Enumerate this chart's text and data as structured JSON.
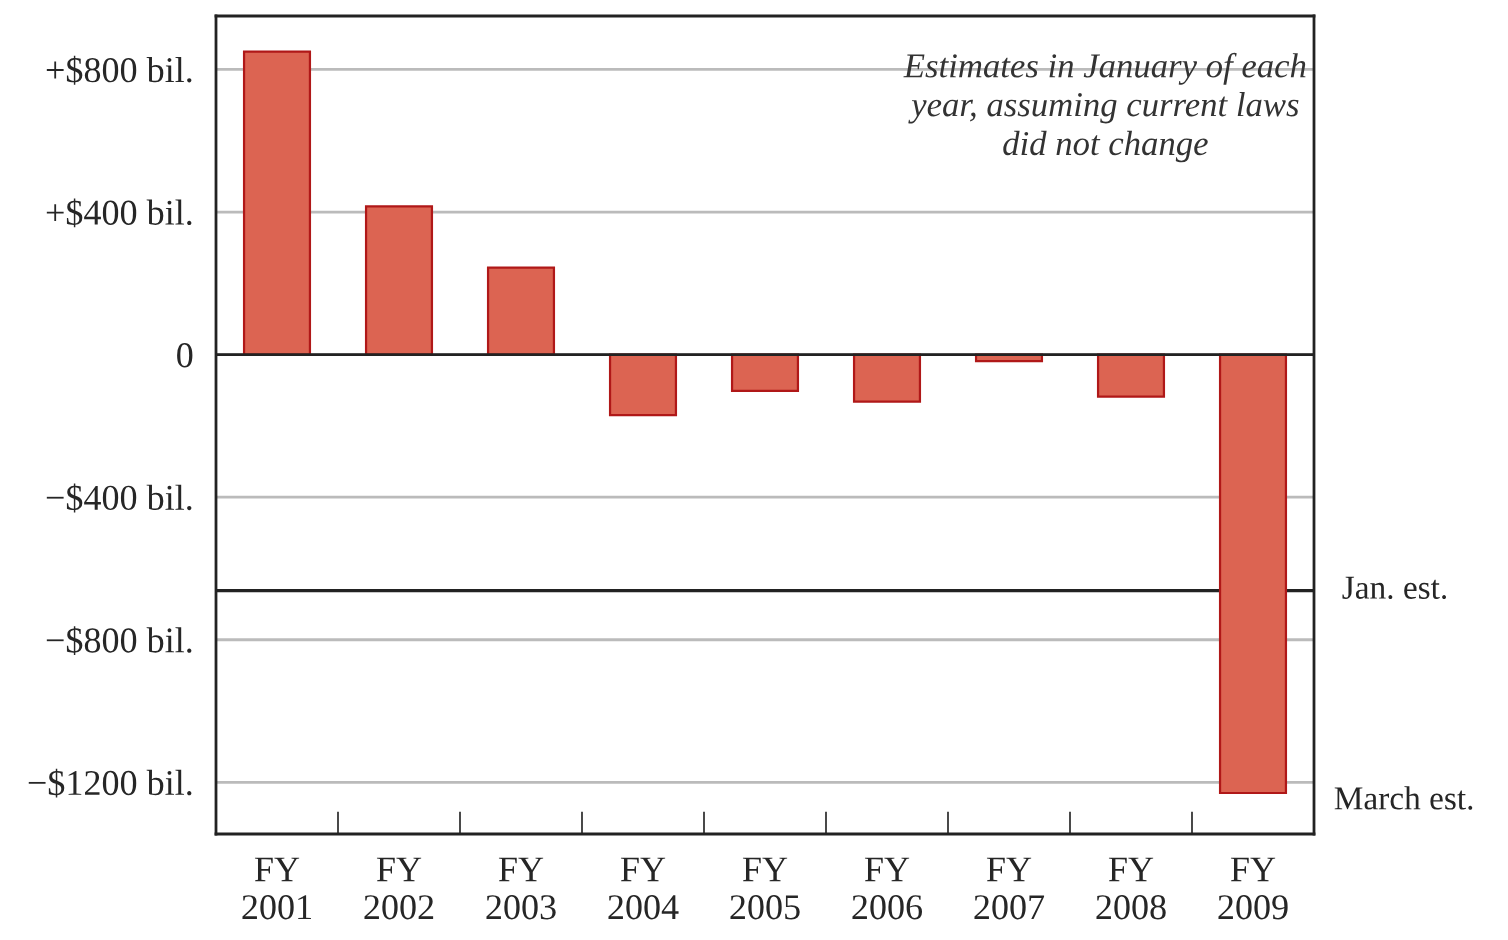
{
  "chart_data": {
    "type": "bar",
    "categories": [
      "FY\n2001",
      "FY\n2002",
      "FY\n2003",
      "FY\n2004",
      "FY\n2005",
      "FY\n2006",
      "FY\n2007",
      "FY\n2008",
      "FY\n2009"
    ],
    "values": [
      850,
      416,
      244,
      -170,
      -102,
      -132,
      -18,
      -118,
      -1230
    ],
    "color": "#dc6452",
    "ylim": [
      -1345,
      950
    ],
    "yticks": [
      {
        "value": 800,
        "label": "+$800 bil."
      },
      {
        "value": 400,
        "label": "+$400 bil."
      },
      0,
      {
        "value": -400,
        "label": "−$400 bil."
      },
      {
        "value": -800,
        "label": "−$800 bil."
      },
      {
        "value": -1200,
        "label": "−$1200 bil."
      }
    ],
    "grid": "y",
    "ref_lines": [
      {
        "axis": "y",
        "value": -662,
        "label": "Jan. est.",
        "color": "#222222"
      }
    ],
    "annotations": [
      "Estimates in January of each\nyear, assuming current laws\ndid not change",
      "March est."
    ]
  }
}
